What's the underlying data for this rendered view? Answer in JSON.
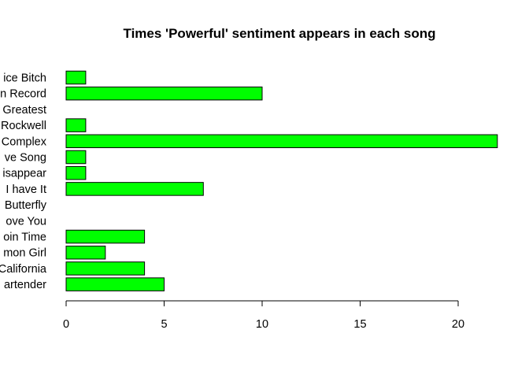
{
  "chart_data": {
    "type": "bar",
    "orientation": "horizontal",
    "title": "Times 'Powerful' sentiment appears in each song",
    "xlabel": "",
    "ylabel": "",
    "categories": [
      "ice Bitch",
      "n Record",
      "Greatest",
      "Rockwell",
      "Complex",
      "ve Song",
      "isappear",
      "I have It",
      "Butterfly",
      "ove You",
      "oin Time",
      "mon Girl",
      "California",
      "artender"
    ],
    "values": [
      1,
      10,
      0,
      1,
      22,
      1,
      1,
      7,
      0,
      0,
      4,
      2,
      4,
      5
    ],
    "xlim": [
      0,
      20
    ],
    "xticks": [
      0,
      5,
      10,
      15,
      20
    ],
    "grid": false,
    "legend": "none",
    "bar_color": "#00FF00",
    "bar_border_color": "#000000"
  }
}
